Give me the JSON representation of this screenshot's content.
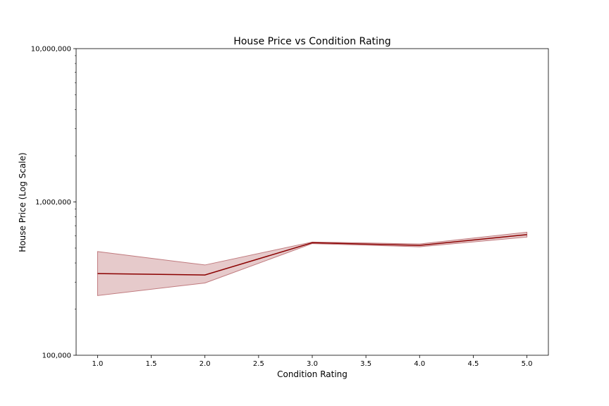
{
  "chart_data": {
    "type": "line",
    "title": "House Price vs Condition Rating",
    "xlabel": "Condition Rating",
    "ylabel": "House Price (Log Scale)",
    "yscale": "log",
    "xlim": [
      0.8,
      5.2
    ],
    "ylim": [
      100000,
      10000000
    ],
    "x_ticks": [
      1.0,
      1.5,
      2.0,
      2.5,
      3.0,
      3.5,
      4.0,
      4.5,
      5.0
    ],
    "x_tick_labels": [
      "1.0",
      "1.5",
      "2.0",
      "2.5",
      "3.0",
      "3.5",
      "4.0",
      "4.5",
      "5.0"
    ],
    "y_ticks": [
      100000,
      1000000,
      10000000
    ],
    "y_tick_labels": [
      "100,000",
      "1,000,000",
      "10,000,000"
    ],
    "grid": false,
    "line_color": "#8b0000",
    "band_color": "#c07a7e",
    "series": [
      {
        "x": [
          1,
          2,
          3,
          4,
          5
        ],
        "values": [
          341000,
          334000,
          542000,
          521000,
          612000
        ],
        "band_lower": [
          245000,
          296000,
          535000,
          510000,
          590000
        ],
        "band_upper": [
          475000,
          388000,
          548000,
          532000,
          635000
        ]
      }
    ]
  }
}
